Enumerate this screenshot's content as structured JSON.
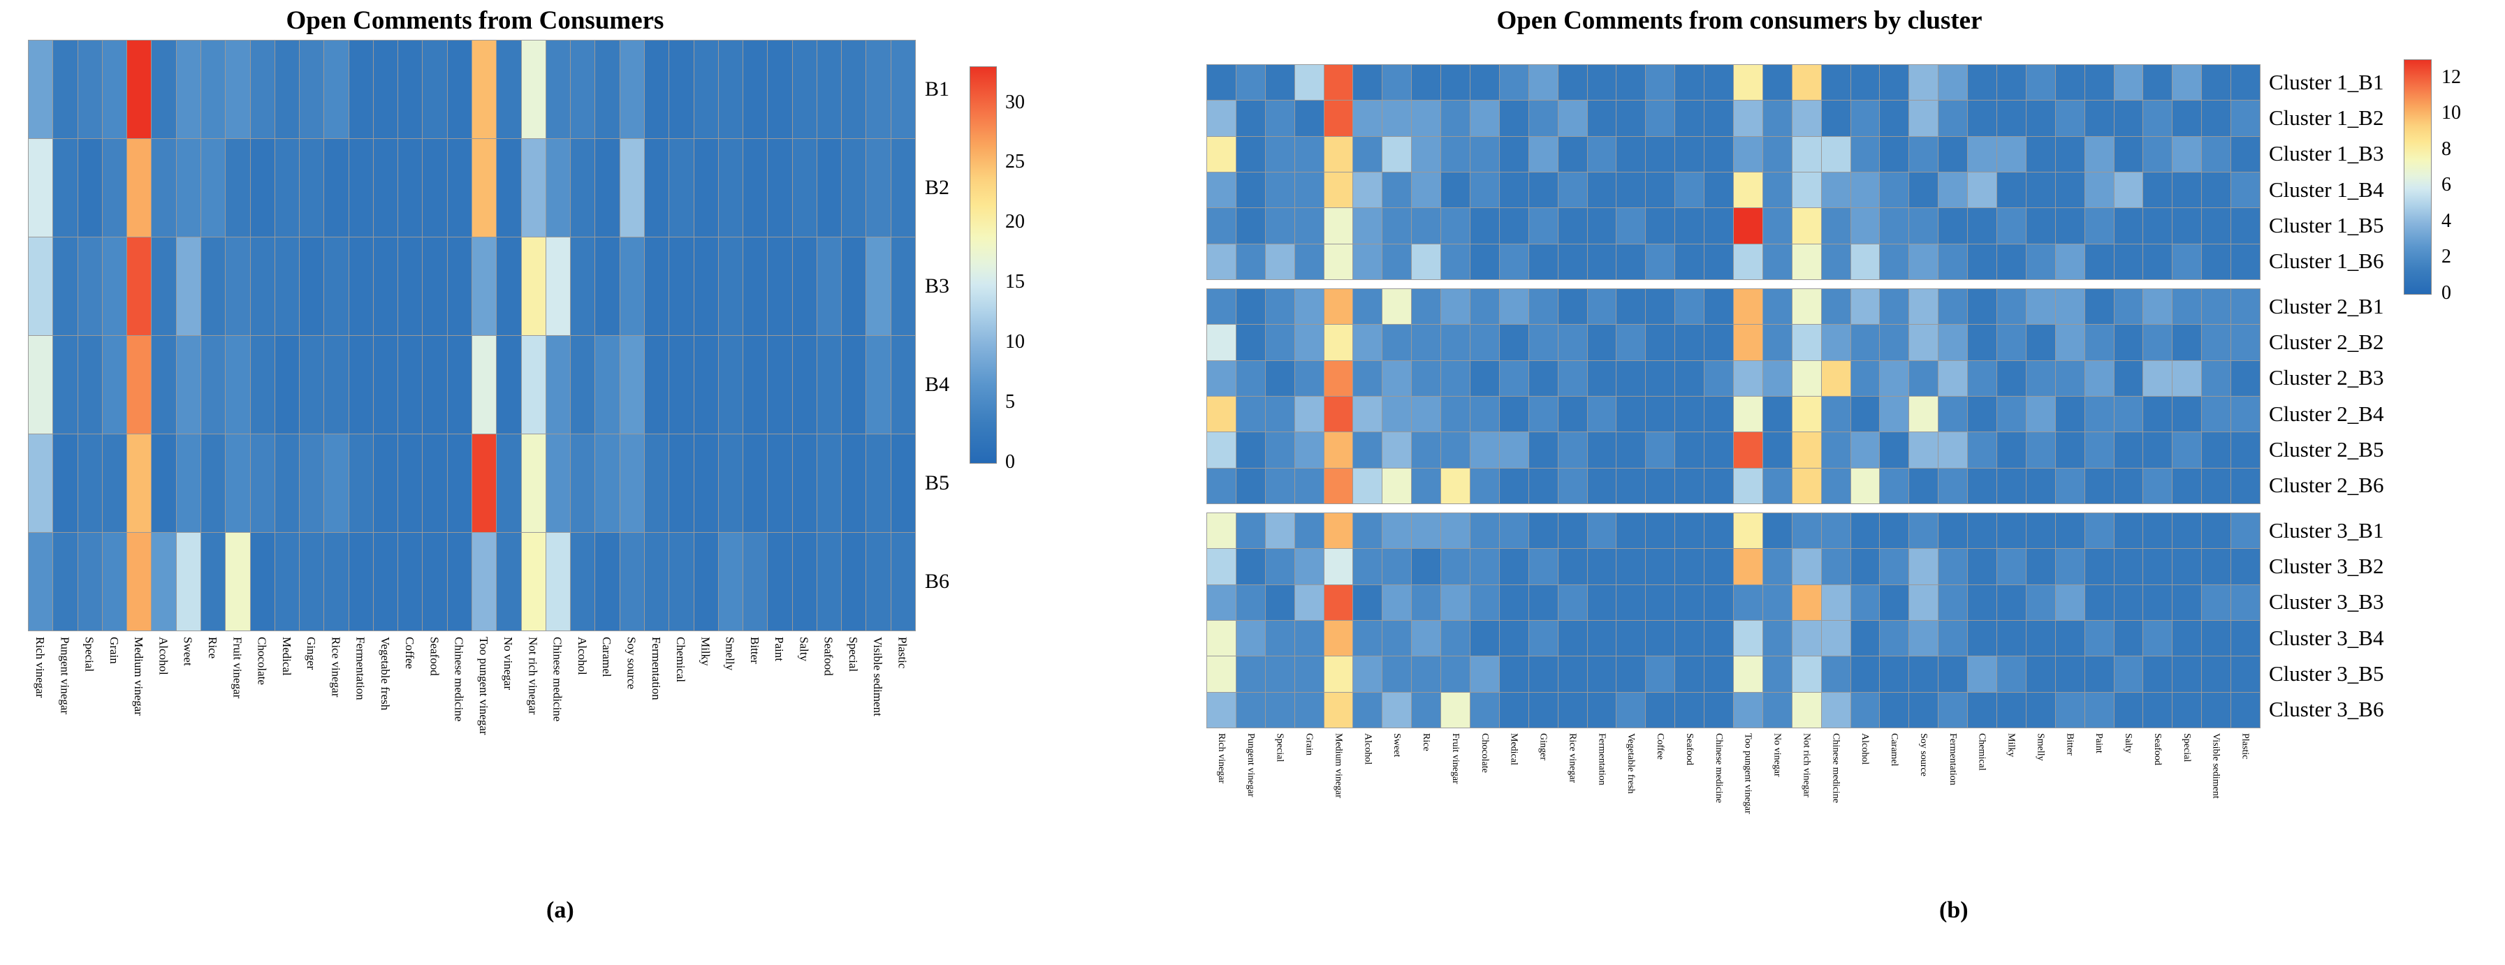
{
  "chart_data": [
    {
      "type": "heatmap",
      "panel": "a",
      "title": "Open Comments from Consumers",
      "caption": "(a)",
      "legend_position": "right-colorbar",
      "grid": "on",
      "vmax": 33,
      "colorbar_ticks": [
        30,
        25,
        20,
        15,
        10,
        5,
        0
      ],
      "row_labels": [
        "B1",
        "B2",
        "B3",
        "B4",
        "B5",
        "B6"
      ],
      "col_labels": [
        "Rich vinegar",
        "Pungent vinegar",
        "Special",
        "Grain",
        "Medium vinegar",
        "Alcohol",
        "Sweet",
        "Rice",
        "Fruit vinegar",
        "Chocolate",
        "Medical",
        "Ginger",
        "Rice vinegar",
        "Fermentation",
        "Vegetable fresh",
        "Coffee",
        "Seafood",
        "Chinese medicine",
        "Too pungent vinegar",
        "No vinegar",
        "Not rich vinegar",
        "Chinese medicine",
        "Alcohol",
        "Caramel",
        "Soy source",
        "Fermentation",
        "Chemical",
        "Milky",
        "Smelly",
        "Bitter",
        "Paint",
        "Salty",
        "Seafood",
        "Special",
        "Visible sediment",
        "Plastic"
      ],
      "values": [
        [
          8,
          3,
          4,
          5,
          33,
          3,
          6,
          5,
          6,
          4,
          3,
          4,
          5,
          2,
          2,
          2,
          3,
          2,
          25,
          3,
          17,
          4,
          4,
          3,
          6,
          2,
          2,
          3,
          3,
          2,
          2,
          3,
          3,
          3,
          4,
          4
        ],
        [
          15,
          3,
          2,
          4,
          26,
          4,
          5,
          5,
          3,
          2,
          3,
          3,
          2,
          2,
          2,
          2,
          2,
          2,
          25,
          2,
          10,
          6,
          3,
          2,
          11,
          2,
          3,
          2,
          3,
          2,
          2,
          3,
          2,
          3,
          4,
          3
        ],
        [
          13,
          3,
          4,
          5,
          31,
          3,
          9,
          3,
          4,
          3,
          3,
          2,
          3,
          2,
          2,
          2,
          2,
          2,
          8,
          2,
          20,
          15,
          3,
          2,
          5,
          2,
          2,
          2,
          3,
          2,
          2,
          2,
          4,
          2,
          7,
          3
        ],
        [
          16,
          3,
          3,
          5,
          28,
          3,
          6,
          4,
          5,
          3,
          2,
          3,
          3,
          2,
          2,
          2,
          2,
          2,
          16,
          2,
          14,
          6,
          3,
          5,
          7,
          2,
          2,
          2,
          3,
          2,
          2,
          2,
          3,
          2,
          5,
          3
        ],
        [
          11,
          2,
          3,
          3,
          25,
          2,
          5,
          3,
          5,
          4,
          3,
          4,
          5,
          3,
          2,
          2,
          2,
          2,
          32,
          3,
          18,
          6,
          4,
          5,
          6,
          3,
          2,
          2,
          3,
          2,
          2,
          2,
          3,
          2,
          3,
          2
        ],
        [
          6,
          3,
          4,
          5,
          26,
          7,
          14,
          3,
          18,
          2,
          3,
          3,
          3,
          2,
          2,
          2,
          2,
          2,
          10,
          3,
          19,
          14,
          3,
          2,
          4,
          3,
          3,
          2,
          5,
          4,
          2,
          2,
          3,
          2,
          3,
          3
        ]
      ]
    },
    {
      "type": "heatmap",
      "panel": "b",
      "title": "Open Comments from consumers by cluster",
      "caption": "(b)",
      "legend_position": "right-colorbar",
      "grid": "on",
      "vmax": 13,
      "colorbar_ticks": [
        12,
        10,
        8,
        6,
        4,
        2,
        0
      ],
      "block_size": 6,
      "row_labels": [
        "Cluster 1_B1",
        "Cluster 1_B2",
        "Cluster 1_B3",
        "Cluster 1_B4",
        "Cluster 1_B5",
        "Cluster 1_B6",
        "Cluster 2_B1",
        "Cluster 2_B2",
        "Cluster 2_B3",
        "Cluster 2_B4",
        "Cluster 2_B5",
        "Cluster 2_B6",
        "Cluster 3_B1",
        "Cluster 3_B2",
        "Cluster 3_B3",
        "Cluster 3_B4",
        "Cluster 3_B5",
        "Cluster 3_B6"
      ],
      "col_labels": [
        "Rich vinegar",
        "Pungent vinegar",
        "Special",
        "Grain",
        "Medium vinegar",
        "Alcohol",
        "Sweet",
        "Rice",
        "Fruit vinegar",
        "Chocolate",
        "Medical",
        "Ginger",
        "Rice vinegar",
        "Fermentation",
        "Vegetable fresh",
        "Coffee",
        "Seafood",
        "Chinese medicine",
        "Too pungent vinegar",
        "No vinegar",
        "Not rich vinegar",
        "Chinese medicine",
        "Alcohol",
        "Caramel",
        "Soy source",
        "Fermentation",
        "Chemical",
        "Milky",
        "Smelly",
        "Bitter",
        "Paint",
        "Salty",
        "Seafood",
        "Special",
        "Visible sediment",
        "Plastic"
      ],
      "values": [
        [
          1,
          2,
          1,
          5,
          12,
          1,
          2,
          1,
          1,
          1,
          2,
          3,
          1,
          1,
          1,
          2,
          1,
          1,
          8,
          1,
          9,
          1,
          1,
          1,
          4,
          3,
          1,
          1,
          2,
          1,
          1,
          3,
          1,
          3,
          1,
          1
        ],
        [
          4,
          1,
          2,
          1,
          12,
          3,
          3,
          3,
          2,
          3,
          1,
          2,
          3,
          1,
          1,
          2,
          1,
          1,
          4,
          2,
          4,
          1,
          2,
          1,
          4,
          2,
          1,
          1,
          1,
          2,
          1,
          1,
          2,
          1,
          1,
          2
        ],
        [
          8,
          1,
          2,
          2,
          9,
          2,
          5,
          3,
          2,
          2,
          1,
          3,
          1,
          2,
          1,
          1,
          1,
          1,
          3,
          2,
          5,
          5,
          2,
          1,
          2,
          1,
          3,
          3,
          1,
          1,
          3,
          1,
          2,
          3,
          2,
          1
        ],
        [
          3,
          1,
          2,
          2,
          9,
          4,
          2,
          3,
          1,
          2,
          1,
          1,
          2,
          1,
          1,
          1,
          2,
          1,
          8,
          2,
          5,
          3,
          3,
          2,
          1,
          3,
          4,
          1,
          1,
          1,
          3,
          4,
          1,
          1,
          1,
          2
        ],
        [
          2,
          1,
          2,
          2,
          7,
          3,
          2,
          2,
          2,
          1,
          1,
          2,
          1,
          1,
          2,
          1,
          1,
          1,
          13,
          2,
          8,
          2,
          3,
          2,
          2,
          1,
          1,
          2,
          1,
          1,
          2,
          1,
          1,
          1,
          1,
          1
        ],
        [
          4,
          2,
          4,
          2,
          7,
          3,
          2,
          5,
          2,
          1,
          2,
          1,
          1,
          1,
          1,
          2,
          1,
          1,
          5,
          2,
          7,
          2,
          5,
          2,
          3,
          2,
          1,
          1,
          2,
          3,
          1,
          1,
          1,
          2,
          1,
          1
        ],
        [
          2,
          1,
          2,
          3,
          10,
          2,
          7,
          2,
          3,
          2,
          3,
          2,
          1,
          2,
          1,
          1,
          2,
          1,
          10,
          2,
          7,
          2,
          4,
          2,
          4,
          2,
          1,
          2,
          3,
          3,
          1,
          2,
          3,
          2,
          2,
          2
        ],
        [
          6,
          1,
          2,
          3,
          8,
          3,
          2,
          2,
          2,
          2,
          1,
          2,
          2,
          1,
          2,
          1,
          1,
          1,
          10,
          2,
          5,
          3,
          2,
          2,
          4,
          3,
          1,
          2,
          1,
          3,
          2,
          1,
          2,
          1,
          2,
          2
        ],
        [
          3,
          2,
          1,
          2,
          11,
          2,
          3,
          2,
          2,
          1,
          2,
          1,
          2,
          1,
          1,
          1,
          1,
          2,
          4,
          3,
          7,
          9,
          2,
          3,
          2,
          4,
          2,
          1,
          2,
          2,
          3,
          1,
          4,
          4,
          2,
          1
        ],
        [
          9,
          2,
          2,
          4,
          12,
          4,
          3,
          3,
          2,
          2,
          1,
          2,
          1,
          2,
          1,
          1,
          1,
          1,
          7,
          1,
          8,
          2,
          1,
          3,
          7,
          2,
          1,
          2,
          3,
          1,
          2,
          2,
          1,
          1,
          2,
          2
        ],
        [
          5,
          1,
          2,
          3,
          10,
          2,
          4,
          2,
          2,
          3,
          3,
          1,
          2,
          1,
          1,
          2,
          1,
          1,
          12,
          1,
          9,
          2,
          3,
          1,
          4,
          4,
          2,
          1,
          2,
          1,
          2,
          1,
          1,
          2,
          1,
          1
        ],
        [
          2,
          1,
          2,
          2,
          11,
          5,
          7,
          2,
          8,
          2,
          1,
          1,
          2,
          1,
          1,
          1,
          1,
          1,
          5,
          2,
          9,
          2,
          7,
          2,
          1,
          2,
          1,
          1,
          1,
          2,
          1,
          1,
          2,
          1,
          1,
          1
        ],
        [
          7,
          2,
          4,
          2,
          10,
          2,
          3,
          3,
          3,
          2,
          2,
          1,
          1,
          2,
          1,
          1,
          1,
          1,
          8,
          1,
          2,
          2,
          1,
          1,
          2,
          1,
          1,
          1,
          1,
          1,
          2,
          1,
          1,
          1,
          1,
          2
        ],
        [
          5,
          1,
          2,
          3,
          6,
          2,
          2,
          1,
          2,
          2,
          1,
          2,
          1,
          1,
          1,
          1,
          1,
          1,
          10,
          2,
          4,
          2,
          1,
          2,
          4,
          2,
          1,
          2,
          1,
          2,
          1,
          1,
          1,
          1,
          1,
          1
        ],
        [
          3,
          2,
          1,
          4,
          12,
          1,
          3,
          2,
          3,
          2,
          1,
          1,
          2,
          1,
          1,
          1,
          1,
          1,
          2,
          2,
          10,
          4,
          2,
          1,
          4,
          2,
          1,
          1,
          2,
          3,
          1,
          1,
          1,
          1,
          2,
          2
        ],
        [
          7,
          3,
          2,
          2,
          10,
          2,
          2,
          3,
          2,
          1,
          1,
          2,
          1,
          1,
          1,
          1,
          1,
          1,
          5,
          2,
          4,
          4,
          1,
          2,
          3,
          2,
          1,
          1,
          1,
          1,
          2,
          1,
          2,
          1,
          1,
          1
        ],
        [
          7,
          2,
          2,
          2,
          8,
          3,
          2,
          2,
          2,
          3,
          1,
          1,
          1,
          1,
          1,
          2,
          1,
          1,
          7,
          2,
          5,
          2,
          1,
          1,
          1,
          1,
          3,
          2,
          1,
          1,
          1,
          2,
          1,
          1,
          1,
          1
        ],
        [
          4,
          2,
          2,
          2,
          9,
          2,
          4,
          2,
          7,
          2,
          1,
          1,
          1,
          1,
          2,
          1,
          1,
          1,
          3,
          2,
          7,
          4,
          2,
          1,
          1,
          2,
          1,
          1,
          1,
          2,
          2,
          1,
          1,
          1,
          1,
          1
        ]
      ]
    }
  ],
  "colormap_stops": [
    {
      "t": 0.0,
      "color": "#256ab6"
    },
    {
      "t": 0.1,
      "color": "#3a7dbe"
    },
    {
      "t": 0.2,
      "color": "#5a96cd"
    },
    {
      "t": 0.3,
      "color": "#87b4dc"
    },
    {
      "t": 0.38,
      "color": "#afd2e9"
    },
    {
      "t": 0.45,
      "color": "#d2e9f0"
    },
    {
      "t": 0.5,
      "color": "#e4f3de"
    },
    {
      "t": 0.57,
      "color": "#f5f7bc"
    },
    {
      "t": 0.65,
      "color": "#fde792"
    },
    {
      "t": 0.72,
      "color": "#fcd07c"
    },
    {
      "t": 0.8,
      "color": "#faa65d"
    },
    {
      "t": 0.88,
      "color": "#f67748"
    },
    {
      "t": 1.0,
      "color": "#eb3323"
    }
  ]
}
